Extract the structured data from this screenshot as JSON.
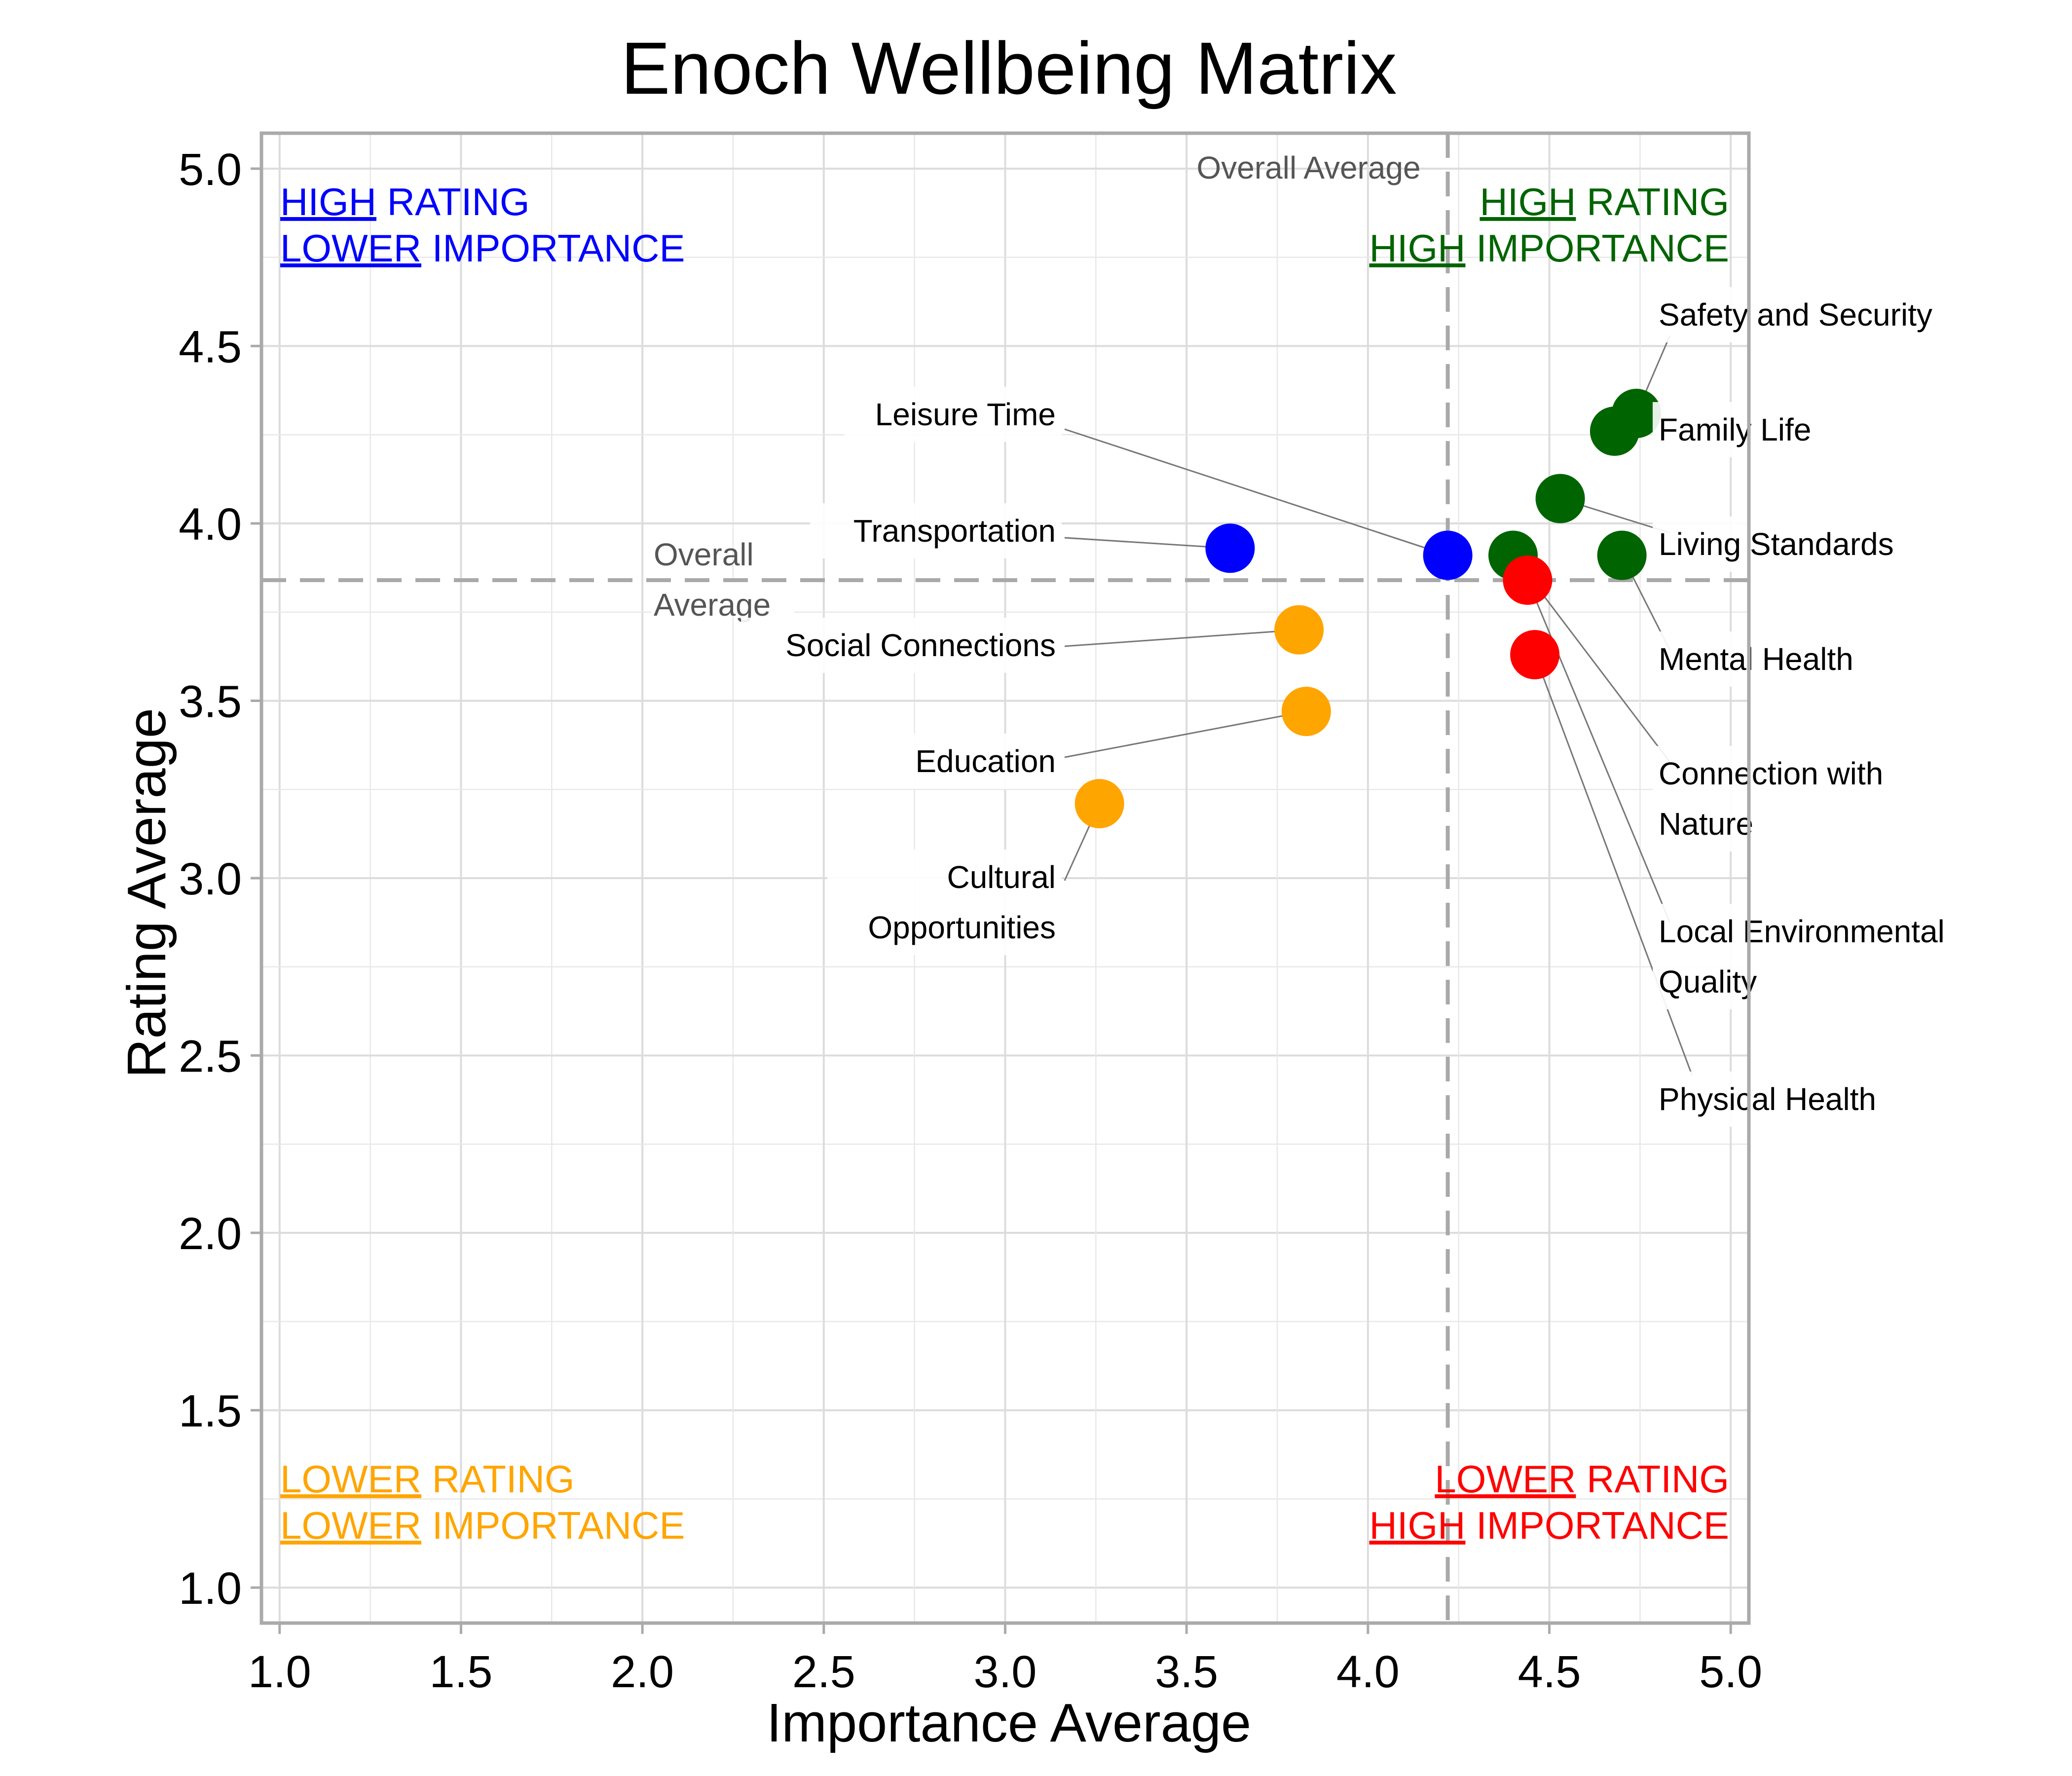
{
  "chart_data": {
    "type": "scatter",
    "title": "Enoch Wellbeing Matrix",
    "xlabel": "Importance Average",
    "ylabel": "Rating Average",
    "xlim": [
      0.95,
      5.05
    ],
    "ylim": [
      0.9,
      5.1
    ],
    "x_ticks": [
      "1.0",
      "1.5",
      "2.0",
      "2.5",
      "3.0",
      "3.5",
      "4.0",
      "4.5",
      "5.0"
    ],
    "y_ticks": [
      "1.0",
      "1.5",
      "2.0",
      "2.5",
      "3.0",
      "3.5",
      "4.0",
      "4.5",
      "5.0"
    ],
    "grid": true,
    "reference_lines": {
      "x_overall_average": 4.22,
      "y_overall_average": 3.84,
      "x_label": "Overall Average",
      "y_label_lines": [
        "Overall",
        "Average"
      ]
    },
    "quadrant_labels": {
      "top_left": {
        "color": "#0000ff",
        "line1": {
          "u": "HIGH",
          "rest": " RATING"
        },
        "line2": {
          "u": "LOWER",
          "rest": " IMPORTANCE"
        }
      },
      "top_right": {
        "color": "#006400",
        "line1": {
          "u": "HIGH",
          "rest": " RATING"
        },
        "line2": {
          "u": "HIGH",
          "rest": " IMPORTANCE"
        }
      },
      "bottom_left": {
        "color": "#ffa500",
        "line1": {
          "u": "LOWER",
          "rest": " RATING"
        },
        "line2": {
          "u": "LOWER",
          "rest": " IMPORTANCE"
        }
      },
      "bottom_right": {
        "color": "#ff0000",
        "line1": {
          "u": "LOWER",
          "rest": " RATING"
        },
        "line2": {
          "u": "HIGH",
          "rest": " IMPORTANCE"
        }
      }
    },
    "colors": {
      "high_rating_high_importance": "#006400",
      "high_rating_lower_importance": "#0000ff",
      "lower_rating_lower_importance": "#ffa500",
      "lower_rating_high_importance": "#ff0000"
    },
    "points": [
      {
        "label": [
          "Safety and Security"
        ],
        "x": 4.74,
        "y": 4.31,
        "color": "#006400"
      },
      {
        "label": [
          "Family Life"
        ],
        "x": 4.68,
        "y": 4.26,
        "color": "#006400"
      },
      {
        "label": [
          "Living Standards"
        ],
        "x": 4.53,
        "y": 4.07,
        "color": "#006400"
      },
      {
        "label": [
          "Mental Health"
        ],
        "x": 4.7,
        "y": 3.91,
        "color": "#006400"
      },
      {
        "label": [
          "Connection with",
          "Nature"
        ],
        "x": 4.4,
        "y": 3.91,
        "color": "#006400"
      },
      {
        "label": [
          "Local Environmental",
          "Quality"
        ],
        "x": 4.44,
        "y": 3.84,
        "color": "#ff0000"
      },
      {
        "label": [
          "Physical Health"
        ],
        "x": 4.46,
        "y": 3.63,
        "color": "#ff0000"
      },
      {
        "label": [
          "Leisure Time"
        ],
        "x": 4.22,
        "y": 3.91,
        "color": "#0000ff"
      },
      {
        "label": [
          "Transportation"
        ],
        "x": 3.62,
        "y": 3.93,
        "color": "#0000ff"
      },
      {
        "label": [
          "Social Connections"
        ],
        "x": 3.81,
        "y": 3.7,
        "color": "#ffa500"
      },
      {
        "label": [
          "Education"
        ],
        "x": 3.83,
        "y": 3.47,
        "color": "#ffa500"
      },
      {
        "label": [
          "Cultural",
          "Opportunities"
        ],
        "x": 3.26,
        "y": 3.21,
        "color": "#ffa500"
      }
    ]
  }
}
